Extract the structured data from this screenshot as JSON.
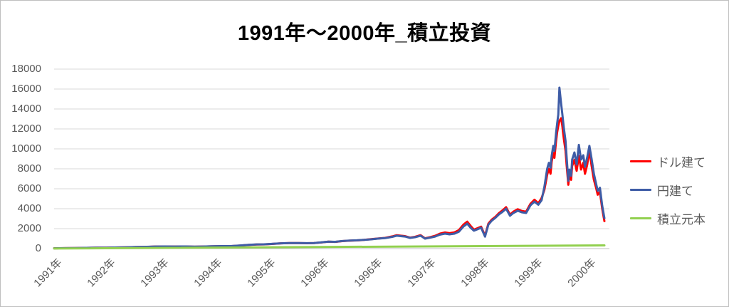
{
  "window": {
    "background": "#FFFFFF",
    "border_color": "#BFBFBF"
  },
  "colors": {
    "gridline": "#D9D9D9",
    "axis_line": "#BFBFBF",
    "tick_label": "#595959",
    "legend_label": "#595959",
    "title": "#000000"
  },
  "chart_data": {
    "type": "line",
    "title": "1991年～2000年_積立投資",
    "xlabel": "",
    "ylabel": "",
    "ylim": [
      0,
      18000
    ],
    "y_ticks": [
      0,
      2000,
      4000,
      6000,
      8000,
      10000,
      12000,
      14000,
      16000,
      18000
    ],
    "x_tick_labels": [
      "1991年",
      "1992年",
      "1993年",
      "1994年",
      "1995年",
      "1996年",
      "1996年",
      "1997年",
      "1998年",
      "1999年",
      "2000年"
    ],
    "grid": "horizontal",
    "legend_position": "right",
    "x_axis_note": "x values are percent of plot width from 1991 (0) to early 2000 (99.1); ticks evenly spaced",
    "x": [
      0,
      1.9,
      3.8,
      5.8,
      7.7,
      9.4,
      10.9,
      12.8,
      14.7,
      16.7,
      18.2,
      19.9,
      21.8,
      23.7,
      25.3,
      26.8,
      28.3,
      30.1,
      31.7,
      33.3,
      35.0,
      36.5,
      37.8,
      39.4,
      40.9,
      42.4,
      44.0,
      45.5,
      46.8,
      48.1,
      49.4,
      50.6,
      51.9,
      53.2,
      54.5,
      55.8,
      57.1,
      58.3,
      59.6,
      60.9,
      61.7,
      62.4,
      63.2,
      64.1,
      65.0,
      66.0,
      66.8,
      67.7,
      68.6,
      69.5,
      70.4,
      71.2,
      72.1,
      72.9,
      73.7,
      74.4,
      75.0,
      75.6,
      76.3,
      76.9,
      77.6,
      78.2,
      78.8,
      79.5,
      80.1,
      80.8,
      81.4,
      82.1,
      82.7,
      83.5,
      84.2,
      85.0,
      85.8,
      86.5,
      87.2,
      87.8,
      88.3,
      88.8,
      89.1,
      89.4,
      89.6,
      89.9,
      90.1,
      90.4,
      90.6,
      90.8,
      91.0,
      91.3,
      91.5,
      91.8,
      92.1,
      92.3,
      92.6,
      92.8,
      93.1,
      93.3,
      93.7,
      94.1,
      94.5,
      94.9,
      95.3,
      95.6,
      96.0,
      96.4,
      96.8,
      97.2,
      97.6,
      97.9,
      98.3,
      98.7,
      99.1
    ],
    "series": [
      {
        "name": "ドル建て",
        "color": "#FF0000",
        "values": [
          25,
          40,
          55,
          70,
          85,
          95,
          110,
          130,
          150,
          175,
          205,
          210,
          205,
          210,
          185,
          205,
          225,
          245,
          245,
          295,
          365,
          415,
          425,
          475,
          525,
          555,
          550,
          535,
          555,
          615,
          690,
          670,
          750,
          790,
          820,
          870,
          940,
          1010,
          1070,
          1220,
          1340,
          1290,
          1250,
          1100,
          1180,
          1340,
          1030,
          1150,
          1280,
          1500,
          1620,
          1540,
          1630,
          1850,
          2400,
          2700,
          2280,
          1900,
          2050,
          2200,
          1300,
          2500,
          2900,
          3200,
          3550,
          3850,
          4150,
          3400,
          3700,
          3950,
          3780,
          3700,
          4500,
          4900,
          4550,
          5070,
          5900,
          7400,
          8000,
          7500,
          8700,
          9600,
          9100,
          10800,
          11700,
          12300,
          12800,
          13070,
          12400,
          11000,
          9800,
          8400,
          6400,
          7400,
          6900,
          8300,
          8900,
          7800,
          9300,
          7930,
          8600,
          7500,
          8400,
          9860,
          8300,
          6900,
          6100,
          5400,
          5700,
          4000,
          2750
        ]
      },
      {
        "name": "円建て",
        "color": "#3E5CA6",
        "values": [
          25,
          40,
          55,
          70,
          85,
          95,
          110,
          130,
          155,
          180,
          210,
          215,
          210,
          215,
          190,
          210,
          230,
          250,
          250,
          300,
          370,
          420,
          430,
          480,
          530,
          560,
          560,
          545,
          560,
          620,
          700,
          680,
          760,
          800,
          830,
          880,
          930,
          1000,
          1050,
          1180,
          1290,
          1250,
          1210,
          1070,
          1140,
          1290,
          1000,
          1100,
          1210,
          1400,
          1500,
          1430,
          1500,
          1700,
          2210,
          2500,
          2100,
          1790,
          1950,
          2100,
          1200,
          2400,
          2790,
          3100,
          3430,
          3710,
          4000,
          3290,
          3570,
          3790,
          3640,
          3570,
          4350,
          4710,
          4400,
          4860,
          6200,
          8000,
          8600,
          8100,
          9300,
          10300,
          9800,
          11600,
          12600,
          13430,
          16140,
          14600,
          13600,
          12100,
          10800,
          9200,
          6790,
          7930,
          7300,
          8930,
          9640,
          8430,
          10400,
          8930,
          9360,
          8210,
          9140,
          10300,
          9000,
          7500,
          6500,
          5790,
          6100,
          4300,
          3050
        ]
      },
      {
        "name": "積立元本",
        "color": "#92D050",
        "points": [
          [
            0,
            10
          ],
          [
            99.1,
            320
          ]
        ]
      }
    ]
  }
}
